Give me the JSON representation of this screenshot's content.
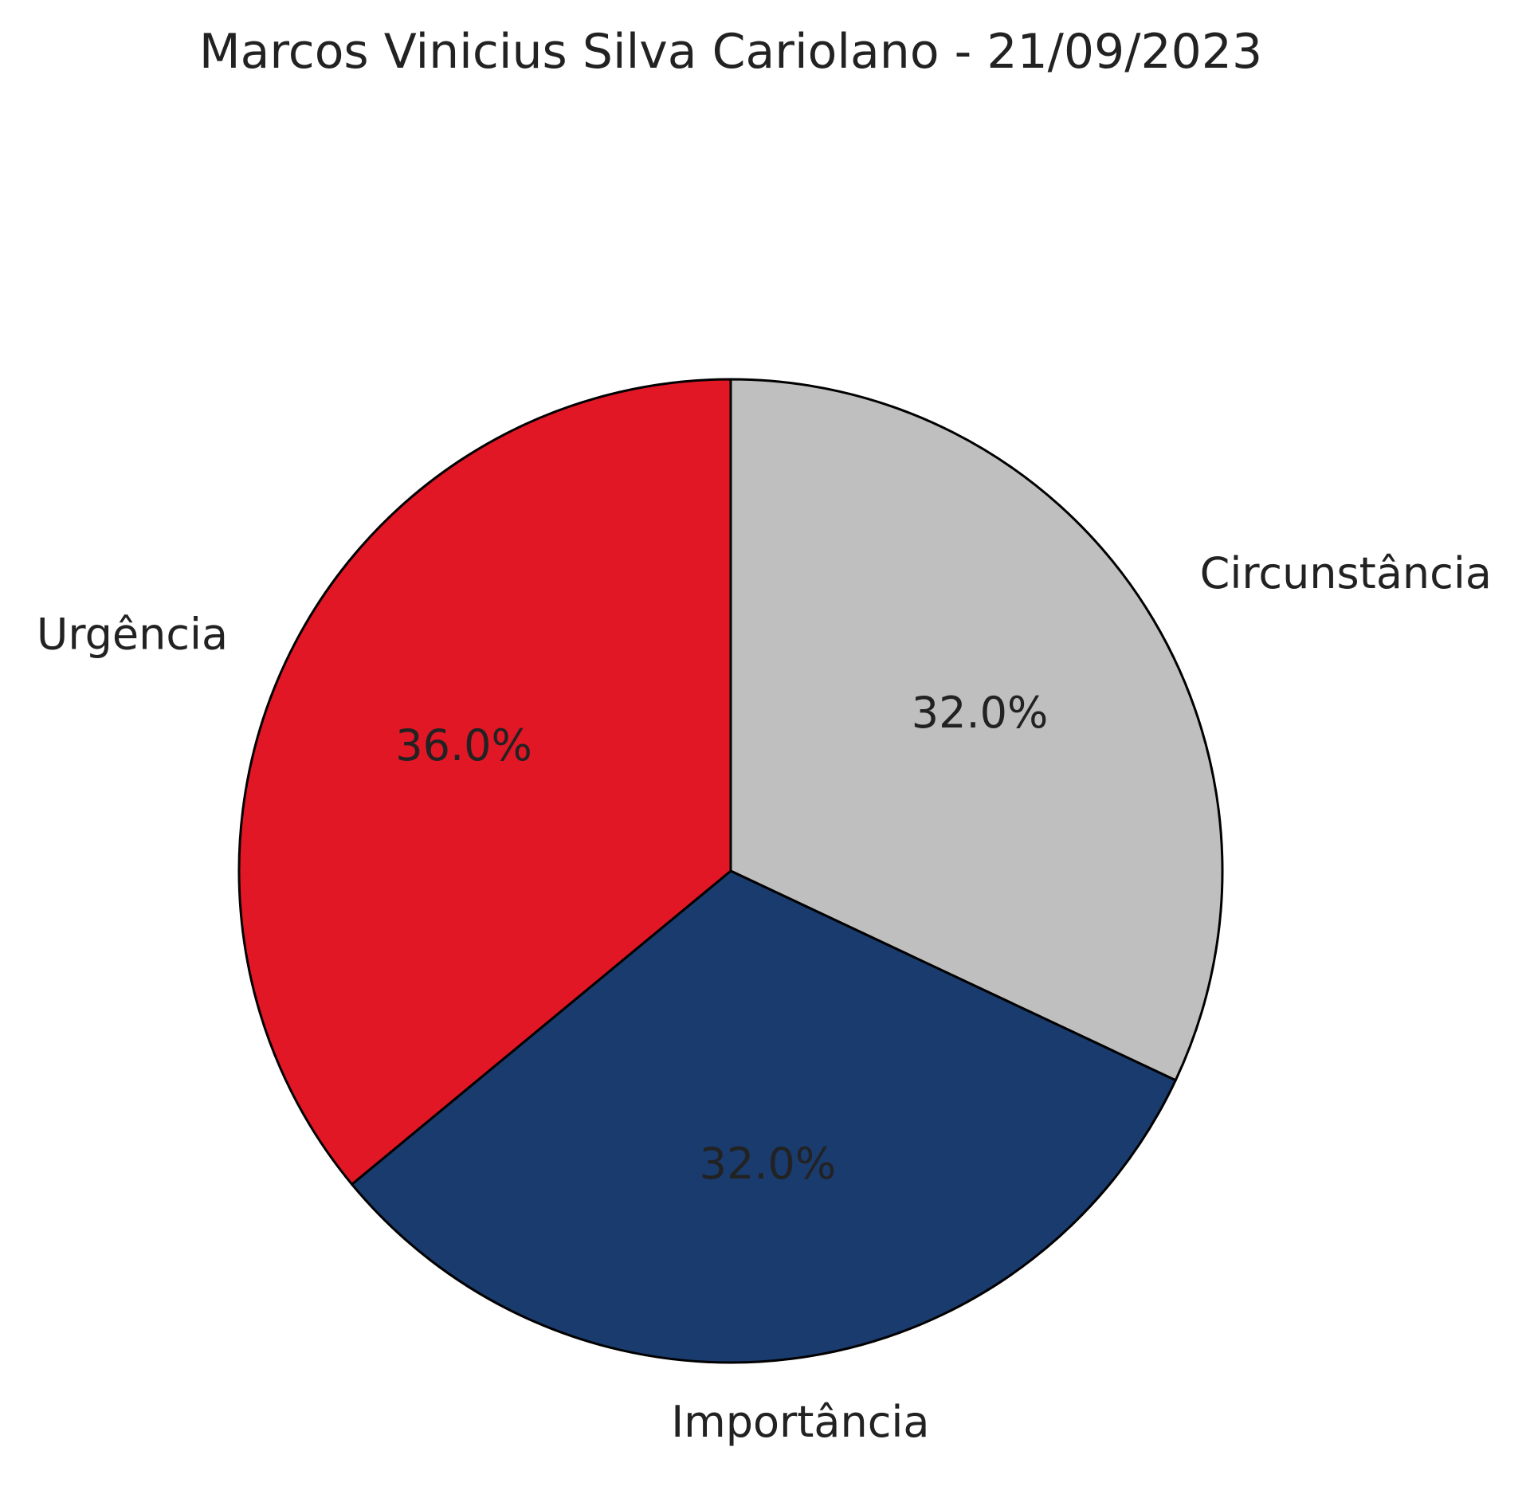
{
  "chart_data": {
    "type": "pie",
    "title": "Marcos Vinicius Silva Cariolano - 21/09/2023",
    "slices": [
      {
        "label": "Circunstância",
        "value": 32.0,
        "percent_label": "32.0%",
        "color": "#bebfbe"
      },
      {
        "label": "Importância",
        "value": 32.0,
        "percent_label": "32.0%",
        "color": "#1a3b6e"
      },
      {
        "label": "Urgência",
        "value": 36.0,
        "percent_label": "36.0%",
        "color": "#e11726"
      }
    ],
    "start": "top",
    "direction": "clockwise",
    "edge_color": "#000000",
    "legend": "none"
  }
}
